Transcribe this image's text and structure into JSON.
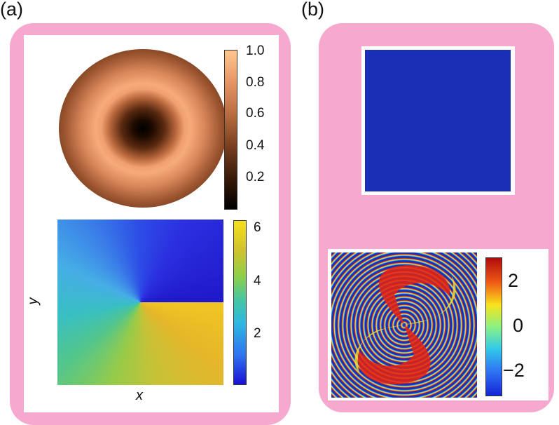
{
  "panels": {
    "a": {
      "label": "(a)",
      "intensity_colorbar_ticks": [
        "1.0",
        "0.8",
        "0.6",
        "0.4",
        "0.2"
      ],
      "phase_colorbar_ticks": [
        "6",
        "4",
        "2"
      ],
      "x_axis_label": "x",
      "y_axis_label": "y"
    },
    "b": {
      "label": "(b)",
      "colorbar_ticks": [
        "2",
        "0",
        "−2"
      ]
    }
  },
  "colors": {
    "frame": "#f7a8cf",
    "ring_background": "#1a2fb6"
  }
}
